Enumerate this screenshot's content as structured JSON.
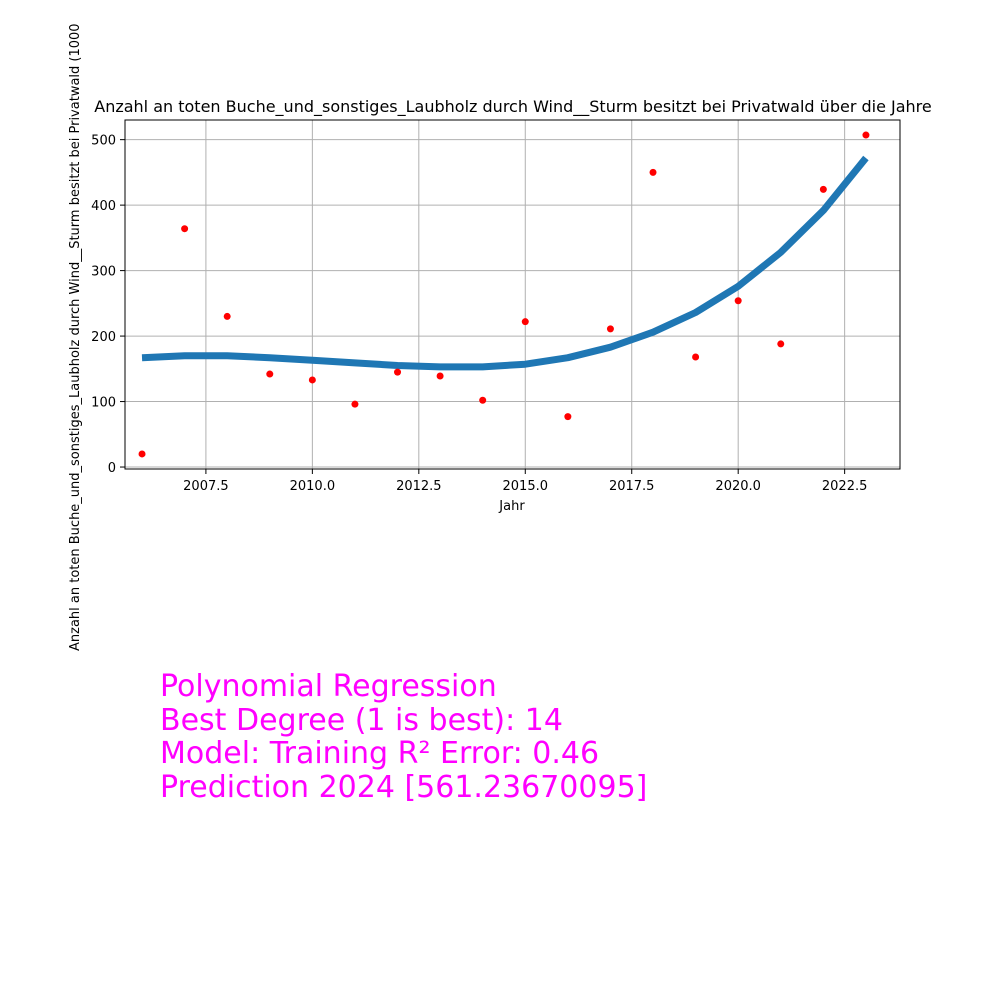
{
  "chart_data": {
    "type": "scatter",
    "title": "Anzahl an toten Buche_und_sonstiges_Laubholz durch Wind__Sturm besitzt bei Privatwald über die Jahre",
    "xlabel": "Jahr",
    "ylabel": "Anzahl an toten Buche_und_sonstiges_Laubholz durch Wind__Sturm besitzt bei Privatwald (1000",
    "xlim": [
      2005.6,
      2023.8
    ],
    "ylim": [
      -3,
      530
    ],
    "x_ticks": [
      2007.5,
      2010.0,
      2012.5,
      2015.0,
      2017.5,
      2020.0,
      2022.5
    ],
    "x_tick_labels": [
      "2007.5",
      "2010.0",
      "2012.5",
      "2015.0",
      "2017.5",
      "2020.0",
      "2022.5"
    ],
    "y_ticks": [
      0,
      100,
      200,
      300,
      400,
      500
    ],
    "y_tick_labels": [
      "0",
      "100",
      "200",
      "300",
      "400",
      "500"
    ],
    "grid": true,
    "series": [
      {
        "kind": "scatter",
        "color": "#ff0000",
        "points": [
          [
            2006,
            20
          ],
          [
            2007,
            364
          ],
          [
            2008,
            230
          ],
          [
            2009,
            142
          ],
          [
            2010,
            133
          ],
          [
            2011,
            96
          ],
          [
            2012,
            145
          ],
          [
            2013,
            139
          ],
          [
            2014,
            102
          ],
          [
            2015,
            222
          ],
          [
            2016,
            77
          ],
          [
            2017,
            211
          ],
          [
            2018,
            450
          ],
          [
            2019,
            168
          ],
          [
            2020,
            254
          ],
          [
            2021,
            188
          ],
          [
            2022,
            424
          ],
          [
            2023,
            507
          ]
        ]
      },
      {
        "kind": "line",
        "color": "#1f77b4",
        "points": [
          [
            2006,
            167
          ],
          [
            2007,
            170
          ],
          [
            2008,
            170
          ],
          [
            2009,
            167
          ],
          [
            2010,
            163
          ],
          [
            2011,
            159
          ],
          [
            2012,
            155
          ],
          [
            2013,
            153
          ],
          [
            2014,
            153
          ],
          [
            2015,
            157
          ],
          [
            2016,
            167
          ],
          [
            2017,
            183
          ],
          [
            2018,
            206
          ],
          [
            2019,
            236
          ],
          [
            2020,
            276
          ],
          [
            2021,
            328
          ],
          [
            2022,
            392
          ],
          [
            2023,
            472
          ]
        ]
      }
    ]
  },
  "stats": {
    "line1": "Polynomial Regression",
    "line2": "Best Degree (1 is best): 14",
    "line3": "Model: Training R² Error: 0.46",
    "line4": "Prediction 2024 [561.23670095]"
  }
}
